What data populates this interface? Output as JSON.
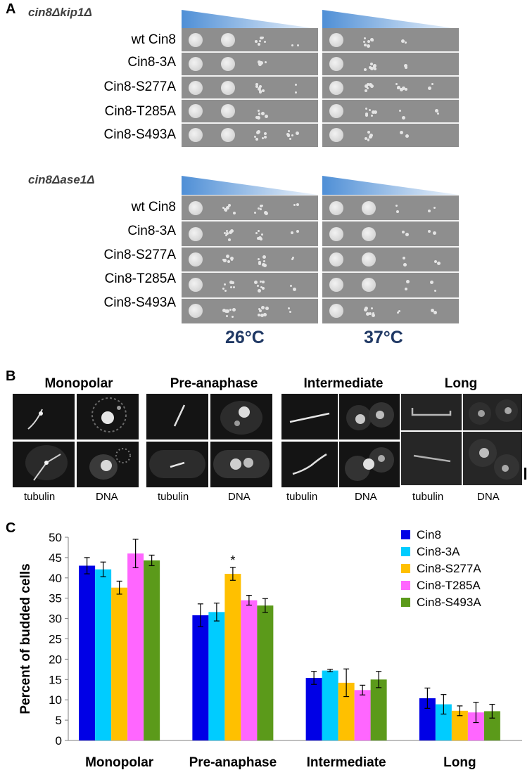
{
  "panelA": {
    "letter": "A",
    "screens": [
      {
        "genotype": "cin8Δkip1Δ",
        "strains": [
          "wt Cin8",
          "Cin8-3A",
          "Cin8-S277A",
          "Cin8-T285A",
          "Cin8-S493A"
        ]
      },
      {
        "genotype": "cin8Δase1Δ",
        "strains": [
          "wt Cin8",
          "Cin8-3A",
          "Cin8-S277A",
          "Cin8-T285A",
          "Cin8-S493A"
        ]
      }
    ],
    "temperatures": [
      "26°C",
      "37°C"
    ],
    "colors": {
      "wedge": "#4f8fd6",
      "plate": "#8e8e8e",
      "temperature_text": "#1f3864"
    }
  },
  "panelB": {
    "letter": "B",
    "groups": [
      {
        "title": "Monopolar",
        "cap_left": "tubulin",
        "cap_right": "DNA"
      },
      {
        "title": "Pre-anaphase",
        "cap_left": "tubulin",
        "cap_right": "DNA"
      },
      {
        "title": "Intermediate",
        "cap_left": "tubulin",
        "cap_right": "DNA"
      },
      {
        "title": "Long",
        "cap_left": "tubulin",
        "cap_right": "DNA"
      }
    ]
  },
  "panelC": {
    "letter": "C",
    "significance_marker": "*"
  },
  "chart_data": {
    "type": "bar",
    "categories": [
      "Monopolar",
      "Pre-anaphase",
      "Intermediate",
      "Long"
    ],
    "ylabel": "Percent of budded cells",
    "xlabel": "",
    "ylim": [
      0,
      50
    ],
    "yticks": [
      0,
      5,
      10,
      15,
      20,
      25,
      30,
      35,
      40,
      45,
      50
    ],
    "grid": false,
    "legend_position": "top-right",
    "series": [
      {
        "name": "Cin8",
        "color": "#0000e6",
        "values": [
          43.0,
          30.8,
          15.4,
          10.4
        ],
        "errors": [
          2.0,
          2.8,
          1.6,
          2.5
        ]
      },
      {
        "name": "Cin8-3A",
        "color": "#00ccff",
        "values": [
          42.1,
          31.6,
          17.2,
          8.9
        ],
        "errors": [
          1.8,
          2.2,
          0.3,
          2.4
        ]
      },
      {
        "name": "Cin8-S277A",
        "color": "#ffc000",
        "values": [
          37.6,
          41.0,
          14.2,
          7.3
        ],
        "errors": [
          1.6,
          1.6,
          3.4,
          1.2
        ]
      },
      {
        "name": "Cin8-T285A",
        "color": "#ff66ff",
        "values": [
          46.0,
          34.5,
          12.4,
          6.9
        ],
        "errors": [
          3.5,
          1.2,
          1.2,
          2.5
        ]
      },
      {
        "name": "Cin8-S493A",
        "color": "#5b9a1a",
        "values": [
          44.3,
          33.2,
          15.0,
          7.2
        ],
        "errors": [
          1.3,
          1.7,
          2.0,
          1.7
        ]
      }
    ]
  }
}
